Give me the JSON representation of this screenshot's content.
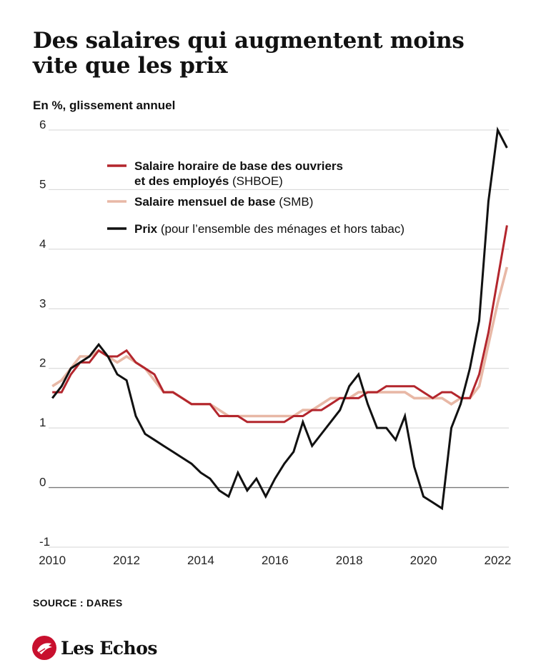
{
  "header": {
    "title": "Des salaires qui augmentent moins vite que les prix",
    "subtitle": "En %, glissement annuel"
  },
  "footer": {
    "source": "SOURCE : DARES",
    "brand": "Les Echos",
    "brand_color": "#c8102e"
  },
  "chart_data": {
    "type": "line",
    "title": "Des salaires qui augmentent moins vite que les prix",
    "ylabel": "En %, glissement annuel",
    "xlabel": "",
    "xlim": [
      2009.9,
      2022.3
    ],
    "ylim": [
      -1,
      6
    ],
    "x_ticks": [
      2010,
      2012,
      2014,
      2016,
      2018,
      2020,
      2022
    ],
    "y_ticks": [
      -1,
      0,
      1,
      2,
      3,
      4,
      5,
      6
    ],
    "grid": "horizontal",
    "legend_position": "top-left",
    "series": [
      {
        "id": "shboe",
        "name": "Salaire horaire de base des ouvriers et des employés",
        "name_lines": [
          "Salaire horaire de base des ouvriers",
          "et des employés"
        ],
        "note": "(SHBOE)",
        "color": "#b3262d",
        "points": [
          [
            2010.0,
            1.6
          ],
          [
            2010.25,
            1.6
          ],
          [
            2010.5,
            1.9
          ],
          [
            2010.75,
            2.1
          ],
          [
            2011.0,
            2.1
          ],
          [
            2011.25,
            2.3
          ],
          [
            2011.5,
            2.2
          ],
          [
            2011.75,
            2.2
          ],
          [
            2012.0,
            2.3
          ],
          [
            2012.25,
            2.1
          ],
          [
            2012.5,
            2.0
          ],
          [
            2012.75,
            1.9
          ],
          [
            2013.0,
            1.6
          ],
          [
            2013.25,
            1.6
          ],
          [
            2013.5,
            1.5
          ],
          [
            2013.75,
            1.4
          ],
          [
            2014.0,
            1.4
          ],
          [
            2014.25,
            1.4
          ],
          [
            2014.5,
            1.2
          ],
          [
            2014.75,
            1.2
          ],
          [
            2015.0,
            1.2
          ],
          [
            2015.25,
            1.1
          ],
          [
            2015.5,
            1.1
          ],
          [
            2015.75,
            1.1
          ],
          [
            2016.0,
            1.1
          ],
          [
            2016.25,
            1.1
          ],
          [
            2016.5,
            1.2
          ],
          [
            2016.75,
            1.2
          ],
          [
            2017.0,
            1.3
          ],
          [
            2017.25,
            1.3
          ],
          [
            2017.5,
            1.4
          ],
          [
            2017.75,
            1.5
          ],
          [
            2018.0,
            1.5
          ],
          [
            2018.25,
            1.5
          ],
          [
            2018.5,
            1.6
          ],
          [
            2018.75,
            1.6
          ],
          [
            2019.0,
            1.7
          ],
          [
            2019.25,
            1.7
          ],
          [
            2019.5,
            1.7
          ],
          [
            2019.75,
            1.7
          ],
          [
            2020.0,
            1.6
          ],
          [
            2020.25,
            1.5
          ],
          [
            2020.5,
            1.6
          ],
          [
            2020.75,
            1.6
          ],
          [
            2021.0,
            1.5
          ],
          [
            2021.25,
            1.5
          ],
          [
            2021.5,
            1.9
          ],
          [
            2021.75,
            2.6
          ],
          [
            2022.0,
            3.5
          ],
          [
            2022.25,
            4.4
          ]
        ]
      },
      {
        "id": "smb",
        "name": "Salaire mensuel de base",
        "name_lines": [
          "Salaire mensuel de base"
        ],
        "note": "(SMB)",
        "color": "#e8b8a6",
        "points": [
          [
            2010.0,
            1.7
          ],
          [
            2010.25,
            1.8
          ],
          [
            2010.5,
            2.0
          ],
          [
            2010.75,
            2.2
          ],
          [
            2011.0,
            2.2
          ],
          [
            2011.25,
            2.3
          ],
          [
            2011.5,
            2.2
          ],
          [
            2011.75,
            2.1
          ],
          [
            2012.0,
            2.2
          ],
          [
            2012.25,
            2.1
          ],
          [
            2012.5,
            2.0
          ],
          [
            2012.75,
            1.8
          ],
          [
            2013.0,
            1.6
          ],
          [
            2013.25,
            1.6
          ],
          [
            2013.5,
            1.5
          ],
          [
            2013.75,
            1.4
          ],
          [
            2014.0,
            1.4
          ],
          [
            2014.25,
            1.4
          ],
          [
            2014.5,
            1.3
          ],
          [
            2014.75,
            1.2
          ],
          [
            2015.0,
            1.2
          ],
          [
            2015.25,
            1.2
          ],
          [
            2015.5,
            1.2
          ],
          [
            2015.75,
            1.2
          ],
          [
            2016.0,
            1.2
          ],
          [
            2016.25,
            1.2
          ],
          [
            2016.5,
            1.2
          ],
          [
            2016.75,
            1.3
          ],
          [
            2017.0,
            1.3
          ],
          [
            2017.25,
            1.4
          ],
          [
            2017.5,
            1.5
          ],
          [
            2017.75,
            1.5
          ],
          [
            2018.0,
            1.5
          ],
          [
            2018.25,
            1.6
          ],
          [
            2018.5,
            1.6
          ],
          [
            2018.75,
            1.6
          ],
          [
            2019.0,
            1.6
          ],
          [
            2019.25,
            1.6
          ],
          [
            2019.5,
            1.6
          ],
          [
            2019.75,
            1.5
          ],
          [
            2020.0,
            1.5
          ],
          [
            2020.25,
            1.5
          ],
          [
            2020.5,
            1.5
          ],
          [
            2020.75,
            1.4
          ],
          [
            2021.0,
            1.5
          ],
          [
            2021.25,
            1.5
          ],
          [
            2021.5,
            1.7
          ],
          [
            2021.75,
            2.4
          ],
          [
            2022.0,
            3.1
          ],
          [
            2022.25,
            3.7
          ]
        ]
      },
      {
        "id": "prix",
        "name": "Prix",
        "name_lines": [
          "Prix"
        ],
        "note": "(pour l’ensemble des ménages et hors tabac)",
        "color": "#111111",
        "points": [
          [
            2010.0,
            1.5
          ],
          [
            2010.25,
            1.7
          ],
          [
            2010.5,
            2.0
          ],
          [
            2010.75,
            2.1
          ],
          [
            2011.0,
            2.2
          ],
          [
            2011.25,
            2.4
          ],
          [
            2011.5,
            2.2
          ],
          [
            2011.75,
            1.9
          ],
          [
            2012.0,
            1.8
          ],
          [
            2012.25,
            1.2
          ],
          [
            2012.5,
            0.9
          ],
          [
            2012.75,
            0.8
          ],
          [
            2013.0,
            0.7
          ],
          [
            2013.25,
            0.6
          ],
          [
            2013.5,
            0.5
          ],
          [
            2013.75,
            0.4
          ],
          [
            2014.0,
            0.25
          ],
          [
            2014.25,
            0.15
          ],
          [
            2014.5,
            -0.05
          ],
          [
            2014.75,
            -0.15
          ],
          [
            2015.0,
            0.25
          ],
          [
            2015.25,
            -0.05
          ],
          [
            2015.5,
            0.15
          ],
          [
            2015.75,
            -0.15
          ],
          [
            2016.0,
            0.15
          ],
          [
            2016.25,
            0.4
          ],
          [
            2016.5,
            0.6
          ],
          [
            2016.75,
            1.1
          ],
          [
            2017.0,
            0.7
          ],
          [
            2017.25,
            0.9
          ],
          [
            2017.5,
            1.1
          ],
          [
            2017.75,
            1.3
          ],
          [
            2018.0,
            1.7
          ],
          [
            2018.25,
            1.9
          ],
          [
            2018.5,
            1.4
          ],
          [
            2018.75,
            1.0
          ],
          [
            2019.0,
            1.0
          ],
          [
            2019.25,
            0.8
          ],
          [
            2019.5,
            1.2
          ],
          [
            2019.75,
            0.35
          ],
          [
            2020.0,
            -0.15
          ],
          [
            2020.25,
            -0.25
          ],
          [
            2020.5,
            -0.35
          ],
          [
            2020.75,
            1.0
          ],
          [
            2021.0,
            1.4
          ],
          [
            2021.25,
            2.0
          ],
          [
            2021.5,
            2.8
          ],
          [
            2021.75,
            4.8
          ],
          [
            2022.0,
            6.0
          ],
          [
            2022.25,
            5.7
          ]
        ]
      }
    ]
  }
}
